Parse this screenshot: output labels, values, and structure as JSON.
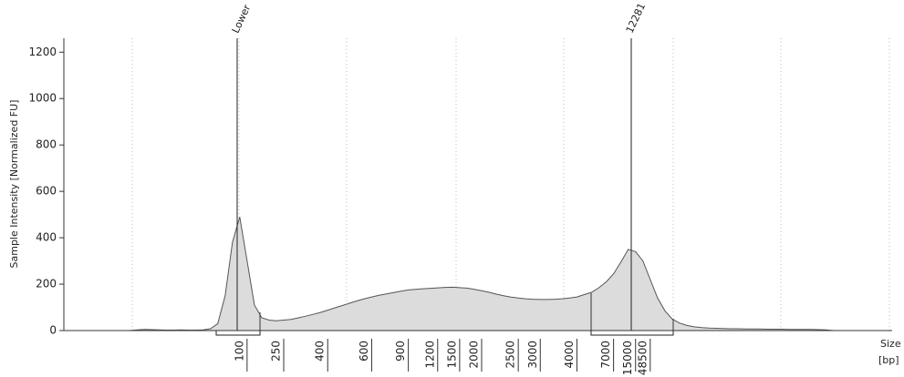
{
  "chart_data": {
    "type": "area",
    "y_label": "Sample Intensity [Normalized FU]",
    "x_label": "Size",
    "x_unit": "[bp]",
    "annotations": [
      "Lower",
      "12281"
    ],
    "categories": [
      null,
      null,
      null,
      null,
      null,
      null,
      null,
      null,
      null,
      null,
      null,
      null,
      null,
      null,
      null,
      null,
      null,
      null,
      null,
      null,
      null,
      null,
      null,
      null,
      "100",
      null,
      null,
      null,
      null,
      "250",
      null,
      null,
      null,
      null,
      null,
      "400",
      null,
      null,
      null,
      null,
      null,
      "600",
      null,
      null,
      null,
      null,
      "900",
      null,
      null,
      null,
      "1200",
      null,
      null,
      "1500",
      null,
      null,
      "2000",
      null,
      null,
      null,
      null,
      "2500",
      null,
      null,
      "3000",
      null,
      null,
      null,
      null,
      "4000",
      null,
      null,
      null,
      null,
      "7000",
      null,
      null,
      "15000",
      null,
      "48500",
      null,
      null,
      null,
      null,
      null,
      null,
      null,
      null,
      null,
      null,
      null,
      null,
      null,
      null,
      null,
      null,
      null,
      null,
      null,
      null,
      null,
      null,
      null,
      null,
      null,
      null,
      null,
      null,
      null,
      null,
      null,
      null,
      null,
      null
    ],
    "values": [
      0,
      0,
      0,
      0,
      0,
      0,
      0,
      0,
      0,
      0,
      3,
      5,
      4,
      3,
      2,
      2,
      3,
      2,
      2,
      3,
      8,
      30,
      150,
      380,
      490,
      300,
      110,
      55,
      45,
      42,
      45,
      48,
      55,
      62,
      70,
      78,
      88,
      98,
      108,
      118,
      128,
      137,
      145,
      152,
      158,
      164,
      170,
      175,
      178,
      180,
      182,
      184,
      186,
      187,
      185,
      183,
      178,
      172,
      165,
      157,
      150,
      144,
      140,
      137,
      135,
      134,
      134,
      135,
      137,
      140,
      145,
      155,
      165,
      185,
      210,
      245,
      295,
      350,
      340,
      300,
      220,
      140,
      85,
      50,
      32,
      22,
      16,
      13,
      11,
      10,
      9,
      8,
      8,
      7,
      7,
      7,
      6,
      6,
      6,
      5,
      5,
      5,
      5,
      4,
      3,
      0,
      0,
      0,
      0,
      0,
      0,
      0,
      0,
      0
    ],
    "color": "#dcdcdc",
    "ylim": [
      0,
      1260
    ],
    "yticks": [
      0,
      200,
      400,
      600,
      800,
      1000,
      1200
    ]
  }
}
